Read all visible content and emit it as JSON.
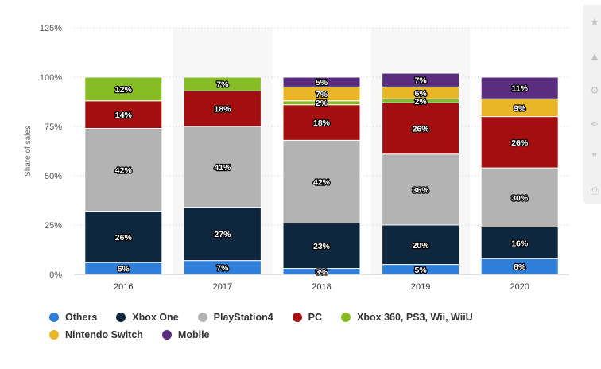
{
  "chart_data": {
    "type": "bar",
    "stacked": true,
    "title": "",
    "xlabel": "",
    "ylabel": "Share of sales",
    "ylim": [
      0,
      125
    ],
    "yticks": [
      "0%",
      "25%",
      "50%",
      "75%",
      "100%",
      "125%"
    ],
    "ytick_values": [
      0,
      25,
      50,
      75,
      100,
      125
    ],
    "grid": true,
    "legend_position": "bottom",
    "categories": [
      "2016",
      "2017",
      "2018",
      "2019",
      "2020"
    ],
    "series": [
      {
        "name": "Others",
        "color": "#2f7ed8",
        "values": [
          6,
          7,
          3,
          5,
          8
        ]
      },
      {
        "name": "Xbox One",
        "color": "#0f263f",
        "values": [
          26,
          27,
          23,
          20,
          16
        ]
      },
      {
        "name": "PlayStation4",
        "color": "#b3b3b3",
        "values": [
          42,
          41,
          42,
          36,
          30
        ]
      },
      {
        "name": "PC",
        "color": "#a30f0f",
        "values": [
          14,
          18,
          18,
          26,
          26
        ]
      },
      {
        "name": "Xbox 360, PS3, Wii, WiiU",
        "color": "#86bd24",
        "values": [
          12,
          7,
          2,
          2,
          null
        ]
      },
      {
        "name": "Nintendo Switch",
        "color": "#eab627",
        "values": [
          null,
          null,
          7,
          6,
          9
        ]
      },
      {
        "name": "Mobile",
        "color": "#5b2d7f",
        "values": [
          null,
          null,
          5,
          7,
          11
        ]
      }
    ]
  },
  "toolbar": {
    "icons": [
      "star-icon",
      "bell-icon",
      "gear-icon",
      "share-icon",
      "quote-icon",
      "print-icon"
    ]
  }
}
